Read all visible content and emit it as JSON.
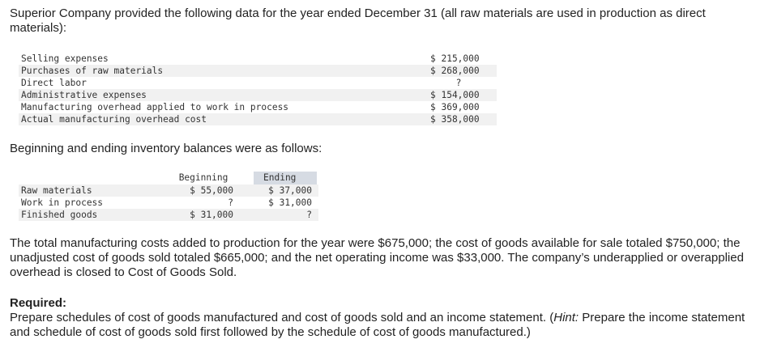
{
  "intro": "Superior Company provided the following data for the year ended December 31 (all raw materials are used in production as direct materials):",
  "costs": [
    {
      "label": "Selling expenses",
      "value": "$ 215,000"
    },
    {
      "label": "Purchases of raw materials",
      "value": "$ 268,000"
    },
    {
      "label": "Direct labor",
      "value": "?"
    },
    {
      "label": "Administrative expenses",
      "value": "$ 154,000"
    },
    {
      "label": "Manufacturing overhead applied to work in process",
      "value": "$ 369,000"
    },
    {
      "label": "Actual manufacturing overhead cost",
      "value": "$ 358,000"
    }
  ],
  "balances_intro": "Beginning and ending inventory balances were as follows:",
  "inventory": {
    "header_beginning": "Beginning",
    "header_ending": "Ending",
    "rows": [
      {
        "label": "Raw materials",
        "beginning": "$ 55,000",
        "ending": "$ 37,000"
      },
      {
        "label": "Work in process",
        "beginning": "?",
        "ending": "$ 31,000"
      },
      {
        "label": "Finished goods",
        "beginning": "$ 31,000",
        "ending": "?"
      }
    ]
  },
  "summary": "The total manufacturing costs added to production for the year were $675,000; the cost of goods available for sale totaled $750,000; the unadjusted cost of goods sold totaled $665,000; and the net operating income was $33,000. The company’s underapplied or overapplied overhead is closed to Cost of Goods Sold.",
  "required_label": "Required:",
  "required_text_before_hint": "Prepare schedules of cost of goods manufactured and cost of goods sold and an income statement. (",
  "required_hint": "Hint:",
  "required_text_after_hint": " Prepare the income statement and schedule of cost of goods sold first followed by the schedule of cost of goods manufactured.)"
}
